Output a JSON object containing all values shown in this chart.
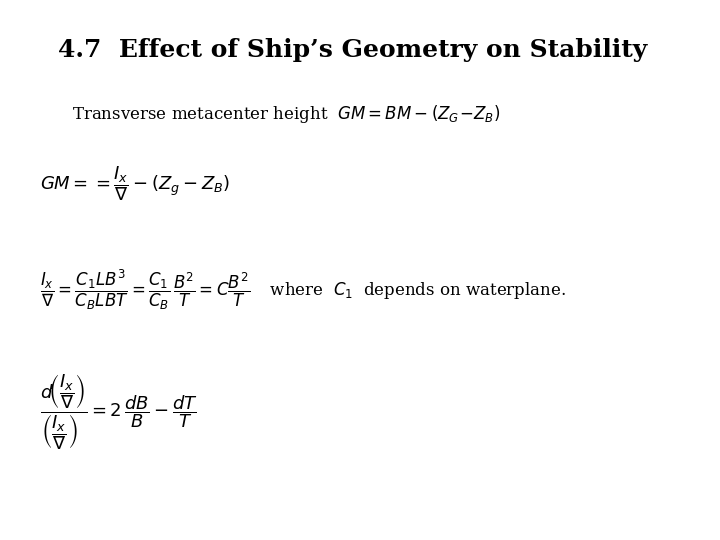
{
  "title": "4.7  Effect of Ship’s Geometry on Stability",
  "bg_color": "#ffffff",
  "text_color": "#000000",
  "title_fontsize": 18,
  "line1_fontsize": 12,
  "eq1_fontsize": 13,
  "eq2_fontsize": 12,
  "eq3_fontsize": 13
}
